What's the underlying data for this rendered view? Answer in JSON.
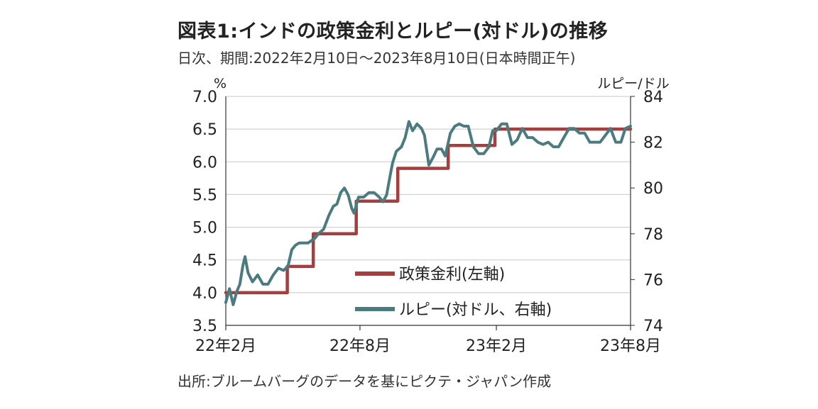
{
  "title": "図表1:インドの政策金利とルピー(対ドル)の推移",
  "subtitle": "日次、期間:2022年2月10日〜2023年8月10日(日本時間正午)",
  "source": "出所:ブルームバーグのデータを基にピクテ・ジャパン作成",
  "colors": {
    "policy_rate": "#a33f3f",
    "rupee": "#4a7b7f",
    "grid": "#c8c8c8"
  },
  "chart_data": {
    "type": "line",
    "left_axis": {
      "unit": "%",
      "ylim": [
        3.5,
        7.0
      ],
      "ticks": [
        "3.5",
        "4.0",
        "4.5",
        "5.0",
        "5.5",
        "6.0",
        "6.5",
        "7.0"
      ]
    },
    "right_axis": {
      "unit": "ルピー/ドル",
      "ylim": [
        74,
        84
      ],
      "ticks": [
        "74",
        "76",
        "78",
        "80",
        "82",
        "84"
      ]
    },
    "x_range": [
      "2022-02-10",
      "2023-08-10"
    ],
    "x_ticks": [
      {
        "date": "2022-02-10",
        "label": "22年2月"
      },
      {
        "date": "2022-08-10",
        "label": "22年8月"
      },
      {
        "date": "2023-02-10",
        "label": "23年2月"
      },
      {
        "date": "2023-08-10",
        "label": "23年8月"
      }
    ],
    "grid": true,
    "legend_position": "bottom-center",
    "series": [
      {
        "name": "政策金利(左軸)",
        "axis": "left",
        "step": true,
        "points": [
          [
            "2022-02-10",
            4.0
          ],
          [
            "2022-05-04",
            4.4
          ],
          [
            "2022-06-08",
            4.9
          ],
          [
            "2022-08-05",
            5.4
          ],
          [
            "2022-09-30",
            5.9
          ],
          [
            "2022-12-07",
            6.25
          ],
          [
            "2023-02-08",
            6.5
          ],
          [
            "2023-08-10",
            6.5
          ]
        ]
      },
      {
        "name": "ルピー(対ドル、右軸)",
        "axis": "right",
        "step": false,
        "points": [
          [
            "2022-02-10",
            75.0
          ],
          [
            "2022-02-15",
            75.6
          ],
          [
            "2022-02-20",
            74.9
          ],
          [
            "2022-02-25",
            75.5
          ],
          [
            "2022-03-01",
            75.8
          ],
          [
            "2022-03-05",
            76.6
          ],
          [
            "2022-03-08",
            77.0
          ],
          [
            "2022-03-12",
            76.3
          ],
          [
            "2022-03-18",
            75.9
          ],
          [
            "2022-03-25",
            76.2
          ],
          [
            "2022-04-01",
            75.8
          ],
          [
            "2022-04-08",
            75.8
          ],
          [
            "2022-04-15",
            76.2
          ],
          [
            "2022-04-22",
            76.5
          ],
          [
            "2022-04-29",
            76.4
          ],
          [
            "2022-05-05",
            76.6
          ],
          [
            "2022-05-10",
            77.3
          ],
          [
            "2022-05-15",
            77.5
          ],
          [
            "2022-05-20",
            77.6
          ],
          [
            "2022-05-25",
            77.6
          ],
          [
            "2022-06-01",
            77.6
          ],
          [
            "2022-06-10",
            77.8
          ],
          [
            "2022-06-15",
            78.0
          ],
          [
            "2022-06-22",
            78.2
          ],
          [
            "2022-06-29",
            78.8
          ],
          [
            "2022-07-05",
            79.2
          ],
          [
            "2022-07-10",
            79.3
          ],
          [
            "2022-07-15",
            79.8
          ],
          [
            "2022-07-20",
            80.0
          ],
          [
            "2022-07-25",
            79.7
          ],
          [
            "2022-07-30",
            79.1
          ],
          [
            "2022-08-02",
            78.9
          ],
          [
            "2022-08-08",
            79.6
          ],
          [
            "2022-08-15",
            79.6
          ],
          [
            "2022-08-22",
            79.8
          ],
          [
            "2022-08-29",
            79.8
          ],
          [
            "2022-09-05",
            79.6
          ],
          [
            "2022-09-10",
            79.4
          ],
          [
            "2022-09-15",
            79.7
          ],
          [
            "2022-09-20",
            80.6
          ],
          [
            "2022-09-23",
            81.1
          ],
          [
            "2022-09-28",
            81.6
          ],
          [
            "2022-10-05",
            81.8
          ],
          [
            "2022-10-10",
            82.2
          ],
          [
            "2022-10-15",
            82.9
          ],
          [
            "2022-10-20",
            82.5
          ],
          [
            "2022-10-26",
            82.8
          ],
          [
            "2022-11-01",
            82.6
          ],
          [
            "2022-11-05",
            82.3
          ],
          [
            "2022-11-11",
            81.0
          ],
          [
            "2022-11-16",
            81.3
          ],
          [
            "2022-11-22",
            81.7
          ],
          [
            "2022-11-28",
            81.7
          ],
          [
            "2022-12-03",
            81.4
          ],
          [
            "2022-12-10",
            82.4
          ],
          [
            "2022-12-16",
            82.7
          ],
          [
            "2022-12-22",
            82.8
          ],
          [
            "2022-12-28",
            82.7
          ],
          [
            "2023-01-03",
            82.7
          ],
          [
            "2023-01-10",
            81.8
          ],
          [
            "2023-01-17",
            81.5
          ],
          [
            "2023-01-24",
            81.5
          ],
          [
            "2023-01-31",
            81.8
          ],
          [
            "2023-02-05",
            82.5
          ],
          [
            "2023-02-10",
            82.5
          ],
          [
            "2023-02-17",
            82.8
          ],
          [
            "2023-02-24",
            82.8
          ],
          [
            "2023-03-03",
            81.9
          ],
          [
            "2023-03-10",
            82.1
          ],
          [
            "2023-03-17",
            82.6
          ],
          [
            "2023-03-24",
            82.2
          ],
          [
            "2023-03-31",
            82.2
          ],
          [
            "2023-04-07",
            82.0
          ],
          [
            "2023-04-14",
            81.9
          ],
          [
            "2023-04-21",
            82.0
          ],
          [
            "2023-04-28",
            81.8
          ],
          [
            "2023-05-05",
            81.8
          ],
          [
            "2023-05-12",
            82.2
          ],
          [
            "2023-05-19",
            82.6
          ],
          [
            "2023-05-26",
            82.6
          ],
          [
            "2023-06-02",
            82.4
          ],
          [
            "2023-06-09",
            82.4
          ],
          [
            "2023-06-16",
            82.0
          ],
          [
            "2023-06-23",
            82.0
          ],
          [
            "2023-06-30",
            82.0
          ],
          [
            "2023-07-07",
            82.3
          ],
          [
            "2023-07-14",
            82.6
          ],
          [
            "2023-07-21",
            82.0
          ],
          [
            "2023-07-28",
            82.0
          ],
          [
            "2023-08-03",
            82.6
          ],
          [
            "2023-08-10",
            82.7
          ]
        ]
      }
    ]
  }
}
